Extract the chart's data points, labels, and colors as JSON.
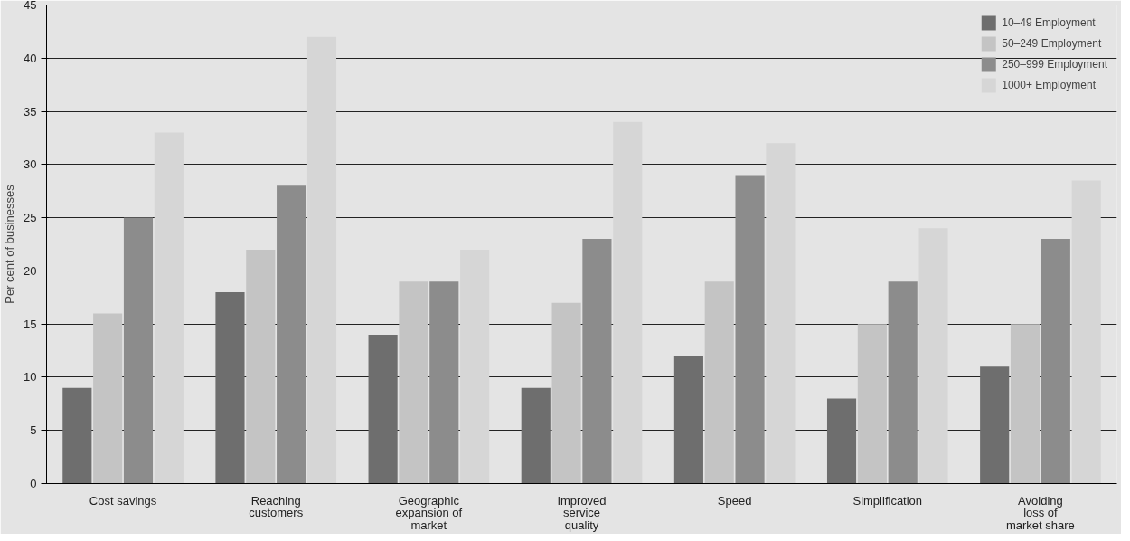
{
  "chart_data": {
    "type": "bar",
    "ylabel": "Per cent of businesses",
    "categories": [
      "Cost savings",
      "Reaching customers",
      "Geographic expansion of market",
      "Improved service quality",
      "Speed",
      "Simplification",
      "Avoiding loss of market share"
    ],
    "series": [
      {
        "name": "10–49 Employment",
        "color": "#6e6e6e",
        "values": [
          9,
          18,
          14,
          9,
          12,
          8,
          11
        ]
      },
      {
        "name": "50–249 Employment",
        "color": "#c4c4c4",
        "values": [
          16,
          22,
          19,
          17,
          19,
          15,
          15
        ]
      },
      {
        "name": "250–999 Employment",
        "color": "#8c8c8c",
        "values": [
          25,
          28,
          19,
          23,
          29,
          19,
          23
        ]
      },
      {
        "name": "1000+ Employment",
        "color": "#d6d6d6",
        "values": [
          33,
          42,
          22,
          34,
          32,
          24,
          28.5
        ]
      }
    ],
    "ylim": [
      0,
      45
    ],
    "yticks": [
      0,
      5,
      10,
      15,
      20,
      25,
      30,
      35,
      40,
      45
    ],
    "grid": "y",
    "legend": "top right"
  }
}
